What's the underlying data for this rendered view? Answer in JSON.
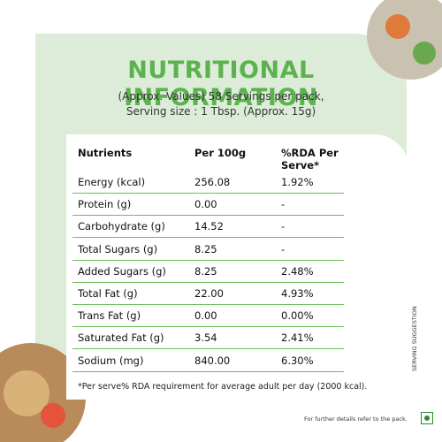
{
  "header": {
    "title": "NUTRITIONAL INFORMATION",
    "subtitle_lines": [
      "(Approx. Values) 58 Servings per pack,",
      "Serving size : 1 Tbsp. (Approx. 15g)"
    ]
  },
  "table": {
    "columns": [
      "Nutrients",
      "Per 100g",
      "%RDA Per Serve*"
    ],
    "rows": [
      [
        "Energy (kcal)",
        "256.08",
        "1.92%"
      ],
      [
        "Protein (g)",
        "0.00",
        "-"
      ],
      [
        "Carbohydrate (g)",
        "14.52",
        "-"
      ],
      [
        "Total Sugars (g)",
        "8.25",
        "-"
      ],
      [
        "Added Sugars (g)",
        "8.25",
        "2.48%"
      ],
      [
        "Total Fat (g)",
        "22.00",
        "4.93%"
      ],
      [
        "Trans Fat (g)",
        "0.00",
        "0.00%"
      ],
      [
        "Saturated Fat (g)",
        "3.54",
        "2.41%"
      ],
      [
        "Sodium (mg)",
        "840.00",
        "6.30%"
      ]
    ]
  },
  "footnote": "*Per serve% RDA requirement for average adult per day (2000 kcal).",
  "side_text": "SERVING SUGGESTION",
  "footer": "For further details refer to the pack."
}
